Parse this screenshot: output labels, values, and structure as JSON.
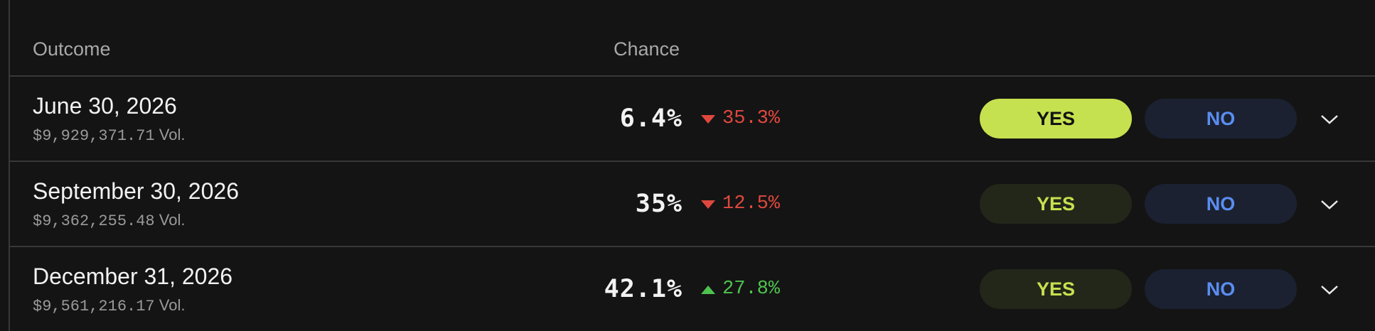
{
  "table": {
    "headers": [
      "Outcome",
      "Chance"
    ],
    "rows": [
      {
        "outcome": "June 30, 2026",
        "volume": "$9,929,371.71",
        "volume_suffix": "Vol.",
        "chance": "6.4%",
        "change": "35.3%",
        "direction": "down",
        "yes": "YES",
        "no": "NO",
        "selected": true
      },
      {
        "outcome": "September 30, 2026",
        "volume": "$9,362,255.48",
        "volume_suffix": "Vol.",
        "chance": "35%",
        "change": "12.5%",
        "direction": "down",
        "yes": "YES",
        "no": "NO",
        "selected": false
      },
      {
        "outcome": "December 31, 2026",
        "volume": "$9,561,216.17",
        "volume_suffix": "Vol.",
        "chance": "42.1%",
        "change": "27.8%",
        "direction": "up",
        "yes": "YES",
        "no": "NO",
        "selected": false
      }
    ]
  }
}
